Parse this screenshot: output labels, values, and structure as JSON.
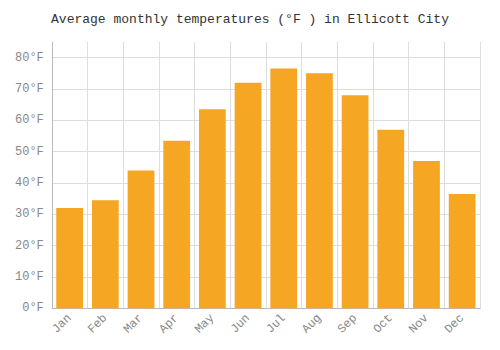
{
  "chart_data": {
    "type": "bar",
    "title": "Average monthly temperatures (°F ) in Ellicott City",
    "categories": [
      "Jan",
      "Feb",
      "Mar",
      "Apr",
      "May",
      "Jun",
      "Jul",
      "Aug",
      "Sep",
      "Oct",
      "Nov",
      "Dec"
    ],
    "values": [
      32,
      34.5,
      44,
      53.5,
      63.5,
      72,
      76.5,
      75,
      68,
      57,
      47,
      36.5
    ],
    "color": "#F5A623",
    "ylim": [
      0,
      85
    ],
    "yticks": [
      {
        "value": 0,
        "label": "0°F"
      },
      {
        "value": 10,
        "label": "10°F"
      },
      {
        "value": 20,
        "label": "20°F"
      },
      {
        "value": 30,
        "label": "30°F"
      },
      {
        "value": 40,
        "label": "40°F"
      },
      {
        "value": 50,
        "label": "50°F"
      },
      {
        "value": 60,
        "label": "60°F"
      },
      {
        "value": 70,
        "label": "70°F"
      },
      {
        "value": 80,
        "label": "80°F"
      }
    ],
    "grid": true
  }
}
